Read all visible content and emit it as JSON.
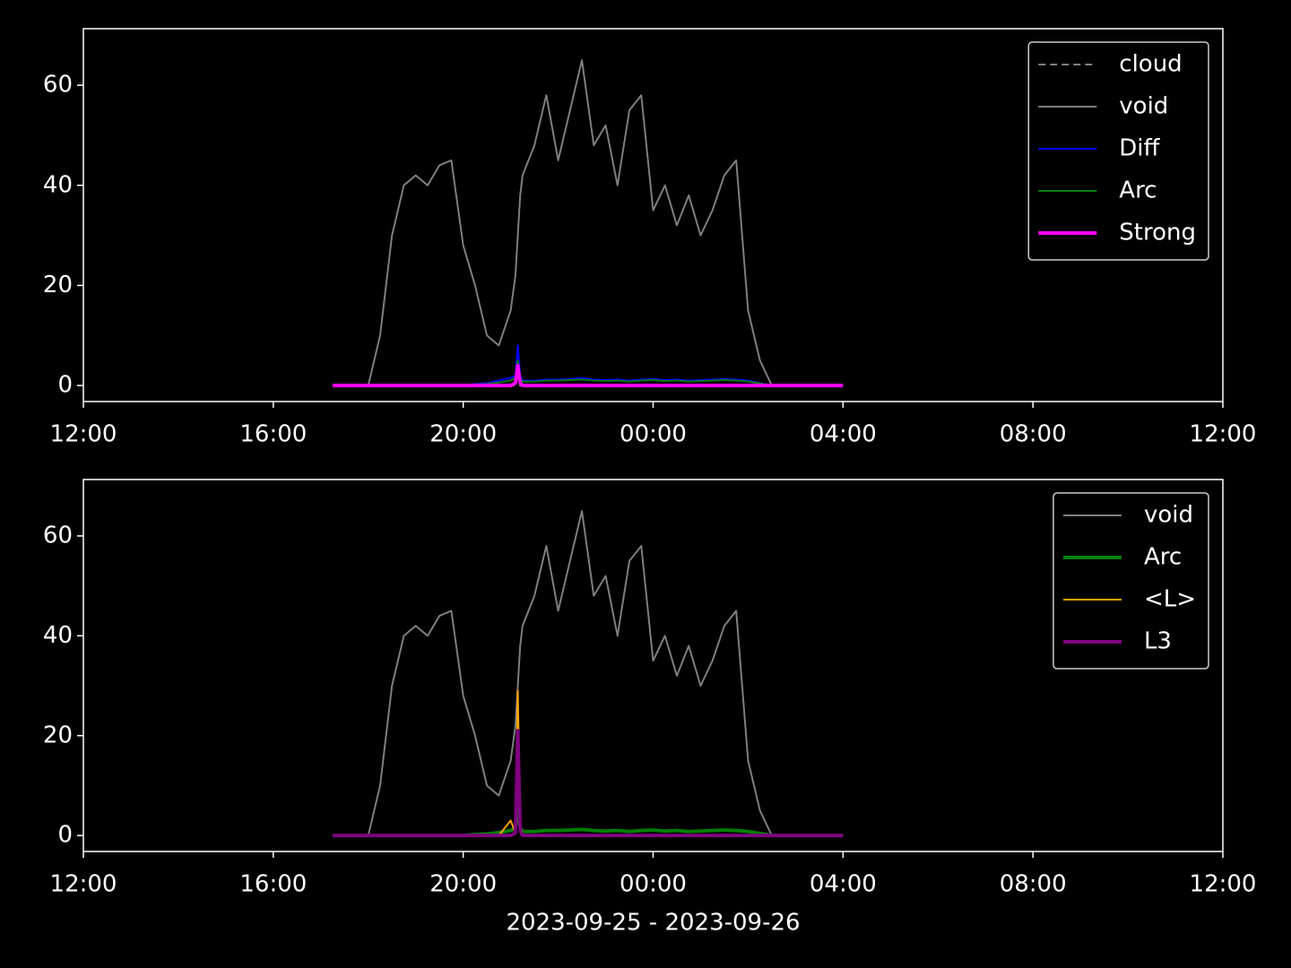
{
  "chart_data": [
    {
      "type": "line",
      "x": [
        5.25,
        6.0,
        6.25,
        6.5,
        6.75,
        7.0,
        7.25,
        7.5,
        7.75,
        8.0,
        8.25,
        8.5,
        8.75,
        9.0,
        9.1,
        9.15,
        9.2,
        9.25,
        9.5,
        9.75,
        10.0,
        10.25,
        10.5,
        10.75,
        11.0,
        11.25,
        11.5,
        11.75,
        12.0,
        12.25,
        12.5,
        12.75,
        13.0,
        13.25,
        13.5,
        13.75,
        14.0,
        14.25,
        14.5,
        15.0,
        16.0
      ],
      "xlim": [
        0,
        24
      ],
      "xticks": [
        {
          "value": 0,
          "label": "12:00"
        },
        {
          "value": 4,
          "label": "16:00"
        },
        {
          "value": 8,
          "label": "20:00"
        },
        {
          "value": 12,
          "label": "00:00"
        },
        {
          "value": 16,
          "label": "04:00"
        },
        {
          "value": 20,
          "label": "08:00"
        },
        {
          "value": 24,
          "label": "12:00"
        }
      ],
      "ylim": [
        -3.2,
        71.3
      ],
      "yticks": [
        0,
        20,
        40,
        60
      ],
      "legend": "upper right",
      "series": [
        {
          "name": "cloud",
          "color": "#808080",
          "linestyle": "dashed",
          "linewidth": 1.5,
          "values": [
            0,
            0,
            0,
            0,
            0,
            0,
            0,
            0,
            0,
            0,
            0,
            0,
            0,
            0,
            0,
            0,
            0,
            0,
            0,
            0,
            0,
            0,
            0,
            0,
            0,
            0,
            0,
            0,
            0,
            0,
            0,
            0,
            0,
            0,
            0,
            0,
            0,
            0,
            0,
            0,
            0
          ]
        },
        {
          "name": "void",
          "color": "#808080",
          "linestyle": "solid",
          "linewidth": 1.5,
          "values": [
            0,
            0,
            10,
            30,
            40,
            42,
            40,
            44,
            45,
            28,
            20,
            10,
            8,
            15,
            22,
            30,
            38,
            42,
            48,
            58,
            45,
            55,
            65,
            48,
            52,
            40,
            55,
            58,
            35,
            40,
            32,
            38,
            30,
            35,
            42,
            45,
            15,
            5,
            0,
            0,
            0
          ]
        },
        {
          "name": "Diff",
          "color": "#0000ff",
          "linestyle": "solid",
          "linewidth": 1.5,
          "values": [
            0,
            0,
            0,
            0,
            0,
            0,
            0,
            0,
            0,
            0,
            0.3,
            0.5,
            1,
            1.5,
            2,
            8,
            2,
            1,
            1,
            1.2,
            1.2,
            1.3,
            1.5,
            1.2,
            1.1,
            1.2,
            1,
            1.2,
            1.3,
            1.1,
            1.2,
            1,
            1.1,
            1.2,
            1.3,
            1.2,
            1,
            0.5,
            0,
            0,
            0
          ]
        },
        {
          "name": "Arc",
          "color": "#008000",
          "linestyle": "solid",
          "linewidth": 1.5,
          "values": [
            0,
            0,
            0,
            0,
            0,
            0,
            0,
            0,
            0,
            0,
            0.2,
            0.3,
            0.6,
            1,
            1.5,
            5,
            1.5,
            0.8,
            0.8,
            1,
            1,
            1.1,
            1.2,
            1,
            0.9,
            1,
            0.8,
            1,
            1.1,
            0.9,
            1,
            0.8,
            0.9,
            1,
            1.1,
            1,
            0.8,
            0.4,
            0,
            0,
            0
          ]
        },
        {
          "name": "Strong",
          "color": "#ff00ff",
          "linestyle": "solid",
          "linewidth": 3,
          "values": [
            0,
            0,
            0,
            0,
            0,
            0,
            0,
            0,
            0,
            0,
            0,
            0,
            0,
            0,
            0.5,
            4,
            0.5,
            0,
            0,
            0,
            0,
            0,
            0,
            0,
            0,
            0,
            0,
            0,
            0,
            0,
            0,
            0,
            0,
            0,
            0,
            0,
            0,
            0,
            0,
            0,
            0
          ]
        }
      ]
    },
    {
      "type": "line",
      "x": [
        5.25,
        6.0,
        6.25,
        6.5,
        6.75,
        7.0,
        7.25,
        7.5,
        7.75,
        8.0,
        8.25,
        8.5,
        8.75,
        9.0,
        9.1,
        9.15,
        9.2,
        9.25,
        9.5,
        9.75,
        10.0,
        10.25,
        10.5,
        10.75,
        11.0,
        11.25,
        11.5,
        11.75,
        12.0,
        12.25,
        12.5,
        12.75,
        13.0,
        13.25,
        13.5,
        13.75,
        14.0,
        14.25,
        14.5,
        15.0,
        16.0
      ],
      "xlim": [
        0,
        24
      ],
      "xticks": [
        {
          "value": 0,
          "label": "12:00"
        },
        {
          "value": 4,
          "label": "16:00"
        },
        {
          "value": 8,
          "label": "20:00"
        },
        {
          "value": 12,
          "label": "00:00"
        },
        {
          "value": 16,
          "label": "04:00"
        },
        {
          "value": 20,
          "label": "08:00"
        },
        {
          "value": 24,
          "label": "12:00"
        }
      ],
      "ylim": [
        -3.2,
        71.3
      ],
      "yticks": [
        0,
        20,
        40,
        60
      ],
      "legend": "upper right",
      "xlabel": "2023-09-25 - 2023-09-26",
      "series": [
        {
          "name": "void",
          "color": "#808080",
          "linestyle": "solid",
          "linewidth": 1.5,
          "values": [
            0,
            0,
            10,
            30,
            40,
            42,
            40,
            44,
            45,
            28,
            20,
            10,
            8,
            15,
            22,
            30,
            38,
            42,
            48,
            58,
            45,
            55,
            65,
            48,
            52,
            40,
            55,
            58,
            35,
            40,
            32,
            38,
            30,
            35,
            42,
            45,
            15,
            5,
            0,
            0,
            0
          ]
        },
        {
          "name": "Arc",
          "color": "#008000",
          "linestyle": "solid",
          "linewidth": 3,
          "values": [
            0,
            0,
            0,
            0,
            0,
            0,
            0,
            0,
            0,
            0,
            0.2,
            0.3,
            0.6,
            1,
            1.5,
            5,
            1.5,
            0.8,
            0.8,
            1,
            1,
            1.1,
            1.2,
            1,
            0.9,
            1,
            0.8,
            1,
            1.1,
            0.9,
            1,
            0.8,
            0.9,
            1,
            1.1,
            1,
            0.8,
            0.4,
            0,
            0,
            0
          ]
        },
        {
          "name": "<L>",
          "color": "#ffa500",
          "linestyle": "solid",
          "linewidth": 1.5,
          "values": [
            0,
            0,
            0,
            0,
            0,
            0,
            0,
            0,
            0,
            0,
            0,
            0,
            0,
            3,
            0.5,
            29,
            2,
            0,
            0,
            0,
            0,
            0,
            0,
            0,
            0,
            0,
            0,
            0,
            0,
            0,
            0,
            0,
            0,
            0,
            0,
            0,
            0,
            0,
            0,
            0,
            0
          ]
        },
        {
          "name": "L3",
          "color": "#800080",
          "linestyle": "solid",
          "linewidth": 3,
          "values": [
            0,
            0,
            0,
            0,
            0,
            0,
            0,
            0,
            0,
            0,
            0,
            0,
            0,
            0,
            0.5,
            21,
            1,
            0,
            0,
            0,
            0,
            0,
            0,
            0,
            0,
            0,
            0,
            0,
            0,
            0,
            0,
            0,
            0,
            0,
            0,
            0,
            0,
            0,
            0,
            0,
            0
          ]
        }
      ]
    }
  ]
}
